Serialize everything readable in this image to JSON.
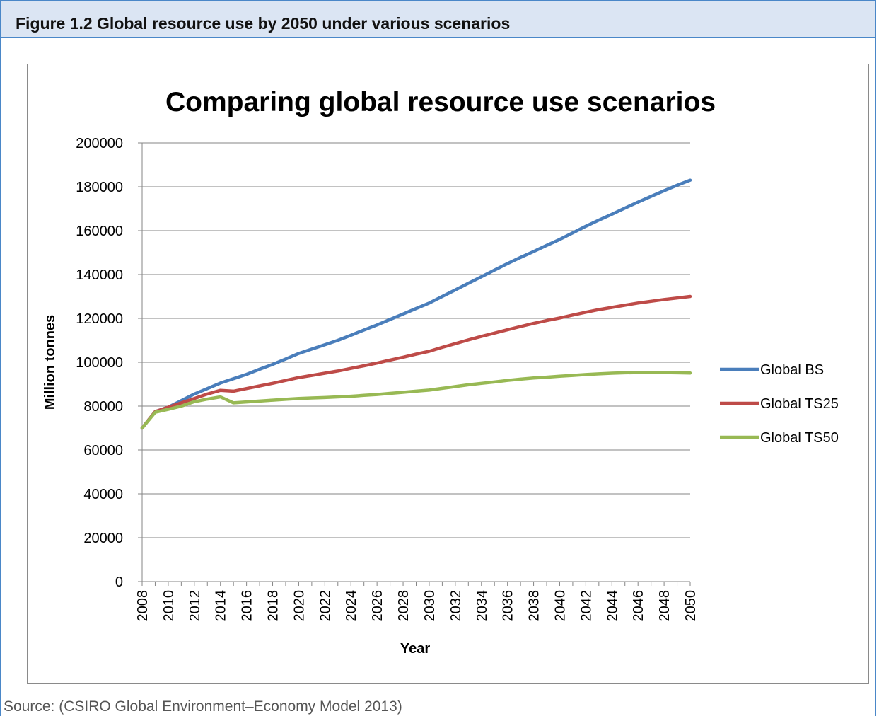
{
  "header": {
    "caption": "Figure 1.2 Global resource use by 2050 under various scenarios"
  },
  "source": "Source: (CSIRO Global Environment–Economy Model 2013)",
  "chart_data": {
    "type": "line",
    "title": "Comparing global resource use scenarios",
    "xlabel": "Year",
    "ylabel": "Million tonnes",
    "ylim": [
      0,
      200000
    ],
    "yticks": [
      "0",
      "20000",
      "40000",
      "60000",
      "80000",
      "100000",
      "120000",
      "140000",
      "160000",
      "180000",
      "200000"
    ],
    "xticks": [
      "2008",
      "2010",
      "2012",
      "2014",
      "2016",
      "2018",
      "2020",
      "2022",
      "2024",
      "2026",
      "2028",
      "2030",
      "2032",
      "2034",
      "2036",
      "2038",
      "2040",
      "2042",
      "2044",
      "2046",
      "2048",
      "2050"
    ],
    "grid": "horizontal",
    "legend_position": "right",
    "x": [
      2008,
      2009,
      2010,
      2011,
      2012,
      2013,
      2014,
      2015,
      2016,
      2017,
      2018,
      2019,
      2020,
      2021,
      2022,
      2023,
      2024,
      2025,
      2026,
      2027,
      2028,
      2029,
      2030,
      2031,
      2032,
      2033,
      2034,
      2035,
      2036,
      2037,
      2038,
      2039,
      2040,
      2041,
      2042,
      2043,
      2044,
      2045,
      2046,
      2047,
      2048,
      2049,
      2050
    ],
    "series": [
      {
        "name": "Global BS",
        "color": "#4a7ebb",
        "values": [
          70000,
          77500,
          79500,
          82500,
          85500,
          88000,
          90500,
          92500,
          94500,
          96800,
          99000,
          101500,
          104000,
          106000,
          108000,
          110000,
          112300,
          114700,
          117000,
          119500,
          122000,
          124500,
          127000,
          130000,
          133000,
          136000,
          139000,
          142000,
          145000,
          147800,
          150500,
          153300,
          156000,
          159000,
          162000,
          164800,
          167500,
          170300,
          173000,
          175600,
          178200,
          180700,
          183000
        ]
      },
      {
        "name": "Global TS25",
        "color": "#be4b48",
        "values": [
          70000,
          77500,
          79500,
          81500,
          83500,
          85500,
          87200,
          86800,
          88000,
          89200,
          90400,
          91700,
          93000,
          94000,
          95000,
          96000,
          97200,
          98400,
          99600,
          101000,
          102300,
          103700,
          105000,
          106800,
          108500,
          110200,
          111800,
          113300,
          114800,
          116300,
          117700,
          119000,
          120200,
          121500,
          122800,
          124000,
          125000,
          126000,
          127000,
          127800,
          128600,
          129300,
          130000
        ]
      },
      {
        "name": "Global TS50",
        "color": "#98b954",
        "values": [
          70000,
          77200,
          78500,
          80000,
          82000,
          83200,
          84200,
          81500,
          81900,
          82300,
          82700,
          83100,
          83500,
          83700,
          83900,
          84200,
          84500,
          84900,
          85300,
          85800,
          86300,
          86800,
          87300,
          88100,
          88900,
          89700,
          90400,
          91000,
          91700,
          92300,
          92800,
          93200,
          93600,
          94000,
          94400,
          94700,
          95000,
          95200,
          95300,
          95300,
          95300,
          95200,
          95100
        ]
      }
    ]
  }
}
